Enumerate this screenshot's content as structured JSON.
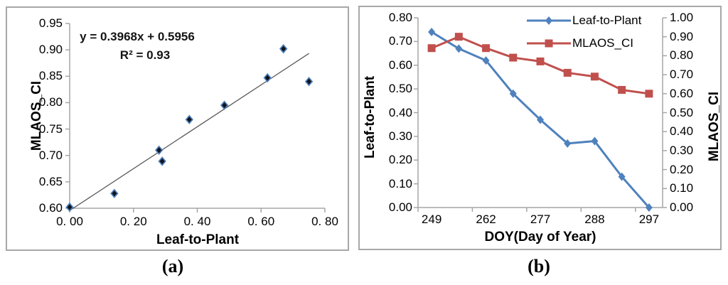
{
  "figure": {
    "caption_a": "(a)",
    "caption_b": "(b)"
  },
  "colors": {
    "blue_series": "#4F81BD",
    "red_series": "#C0504D",
    "scatter_marker_fill": "#10141f",
    "trendline": "#595959",
    "axis_line": "#a6a6a6",
    "panel_border": "#a8a8a8",
    "text": "#000000"
  },
  "chart_data": [
    {
      "panel": "a",
      "type": "scatter",
      "xlabel": "Leaf-to-Plant",
      "ylabel": "MLAOS_CI",
      "equation_line1": "y = 0.3968x + 0.5956",
      "equation_line2": "R² = 0.93",
      "trendline": {
        "slope": 0.3968,
        "intercept": 0.5956,
        "x_start": 0.0,
        "x_end": 0.75
      },
      "points": [
        [
          0.0,
          0.602
        ],
        [
          0.14,
          0.628
        ],
        [
          0.28,
          0.71
        ],
        [
          0.29,
          0.689
        ],
        [
          0.375,
          0.768
        ],
        [
          0.485,
          0.795
        ],
        [
          0.62,
          0.847
        ],
        [
          0.67,
          0.902
        ],
        [
          0.75,
          0.84
        ]
      ],
      "xlim": [
        0.0,
        0.8
      ],
      "ylim": [
        0.6,
        0.95
      ],
      "x_tick_labels": [
        "0. 00",
        "0. 20",
        "0. 40",
        "0. 60",
        "0. 80"
      ],
      "y_tick_labels": [
        "0.60",
        "0.65",
        "0.70",
        "0.75",
        "0.80",
        "0.85",
        "0.90",
        "0.95"
      ],
      "grid": false
    },
    {
      "panel": "b",
      "type": "line",
      "xlabel": "DOY(Day of Year)",
      "ylabel_left": "Leaf-to-Plant",
      "ylabel_right": "MLAOS_CI",
      "n_categories": 9,
      "x_ticks": [
        {
          "category": 0,
          "label": "249"
        },
        {
          "category": 2,
          "label": "262"
        },
        {
          "category": 4,
          "label": "277"
        },
        {
          "category": 6,
          "label": "288"
        },
        {
          "category": 8,
          "label": "297"
        }
      ],
      "ylim_left": [
        0.0,
        0.8
      ],
      "ylim_right": [
        0.0,
        1.0
      ],
      "y_tick_labels_left": [
        "0.00",
        "0.10",
        "0.20",
        "0.30",
        "0.40",
        "0.50",
        "0.60",
        "0.70",
        "0.80"
      ],
      "y_tick_labels_right": [
        "0.00",
        "0.10",
        "0.20",
        "0.30",
        "0.40",
        "0.50",
        "0.60",
        "0.70",
        "0.80",
        "0.90",
        "1.00"
      ],
      "series": [
        {
          "name": "Leaf-to-Plant",
          "axis": "left",
          "marker": "diamond",
          "color": "#4F81BD",
          "values": [
            0.74,
            0.67,
            0.62,
            0.48,
            0.37,
            0.27,
            0.28,
            0.13,
            0.0
          ]
        },
        {
          "name": "MLAOS_CI",
          "axis": "right",
          "marker": "square",
          "color": "#C0504D",
          "values": [
            0.84,
            0.9,
            0.84,
            0.79,
            0.77,
            0.71,
            0.69,
            0.62,
            0.6
          ]
        }
      ],
      "legend": [
        "Leaf-to-Plant",
        "MLAOS_CI"
      ],
      "legend_position": "top",
      "grid": false
    }
  ]
}
